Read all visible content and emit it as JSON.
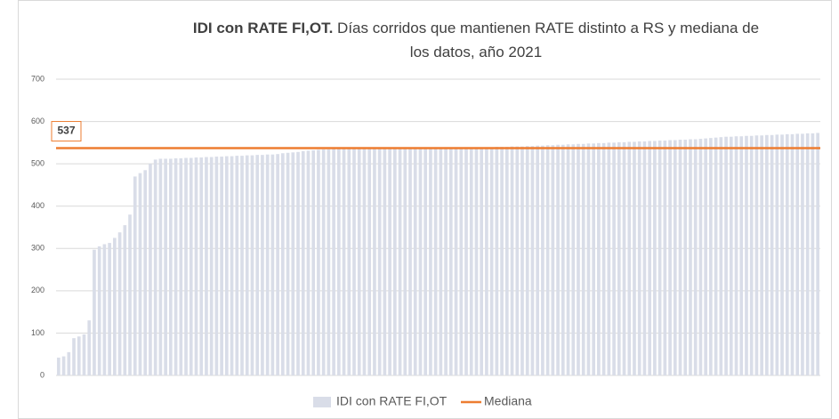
{
  "chart_data": {
    "type": "bar",
    "title_emphasis": "IDI con RATE FI,OT.",
    "title": "Días corridos que mantienen RATE distinto a RS y mediana de los datos, año 2021",
    "categories": [
      null,
      null,
      null,
      null,
      null,
      null,
      null,
      null,
      null,
      null,
      null,
      null,
      null,
      null,
      null,
      null,
      null,
      null,
      null,
      null,
      null,
      null,
      null,
      null,
      null,
      null,
      null,
      null,
      null,
      null,
      null,
      null,
      null,
      null,
      null,
      null,
      null,
      null,
      null,
      null,
      null,
      null,
      null,
      null,
      null,
      null,
      null,
      null,
      null,
      null,
      null,
      null,
      null,
      null,
      null,
      null,
      null,
      null,
      null,
      null,
      null,
      null,
      null,
      null,
      null,
      null,
      null,
      null,
      null,
      null,
      null,
      null,
      null,
      null,
      null,
      null,
      null,
      null,
      null,
      null,
      null,
      null,
      null,
      null,
      null,
      null,
      null,
      null,
      null,
      null,
      null,
      null,
      null,
      null,
      null,
      null,
      null,
      null,
      null,
      null,
      null,
      null,
      null,
      null,
      null,
      null,
      null,
      null,
      null,
      null,
      null,
      null,
      null,
      null,
      null,
      null,
      null,
      null,
      null,
      null,
      null,
      null,
      null,
      null,
      null,
      null,
      null,
      null,
      null,
      null,
      null,
      null,
      null,
      null,
      null,
      null,
      null,
      null,
      null,
      null,
      null,
      null,
      null,
      null,
      null,
      null,
      null,
      null,
      null,
      null
    ],
    "series": [
      {
        "name": "IDI con RATE FI,OT",
        "color": "#d9dde8",
        "values": [
          42,
          45,
          55,
          88,
          92,
          97,
          130,
          297,
          305,
          310,
          313,
          325,
          338,
          355,
          380,
          470,
          478,
          485,
          500,
          510,
          512,
          512,
          512,
          513,
          513,
          514,
          514,
          515,
          515,
          516,
          516,
          517,
          517,
          518,
          518,
          519,
          519,
          520,
          520,
          521,
          521,
          522,
          522,
          523,
          525,
          526,
          527,
          528,
          530,
          531,
          532,
          533,
          534,
          534,
          535,
          535,
          535,
          536,
          536,
          536,
          536,
          536,
          537,
          537,
          537,
          537,
          537,
          537,
          537,
          537,
          537,
          537,
          537,
          537,
          537,
          537,
          537,
          537,
          537,
          537,
          538,
          538,
          538,
          539,
          539,
          539,
          540,
          540,
          540,
          541,
          541,
          541,
          542,
          542,
          543,
          543,
          544,
          544,
          545,
          545,
          546,
          546,
          547,
          547,
          548,
          548,
          549,
          549,
          550,
          550,
          551,
          551,
          552,
          552,
          553,
          553,
          554,
          554,
          555,
          555,
          556,
          556,
          557,
          557,
          558,
          558,
          559,
          560,
          561,
          562,
          563,
          564,
          564,
          565,
          565,
          566,
          566,
          567,
          567,
          568,
          568,
          569,
          569,
          570,
          570,
          571,
          571,
          572,
          572,
          573
        ]
      }
    ],
    "reference_line": {
      "name": "Mediana",
      "value": 537,
      "color": "#ed7d31"
    },
    "ylim": [
      0,
      700
    ],
    "yticks": [
      0,
      100,
      200,
      300,
      400,
      500,
      600,
      700
    ],
    "grid": true
  }
}
